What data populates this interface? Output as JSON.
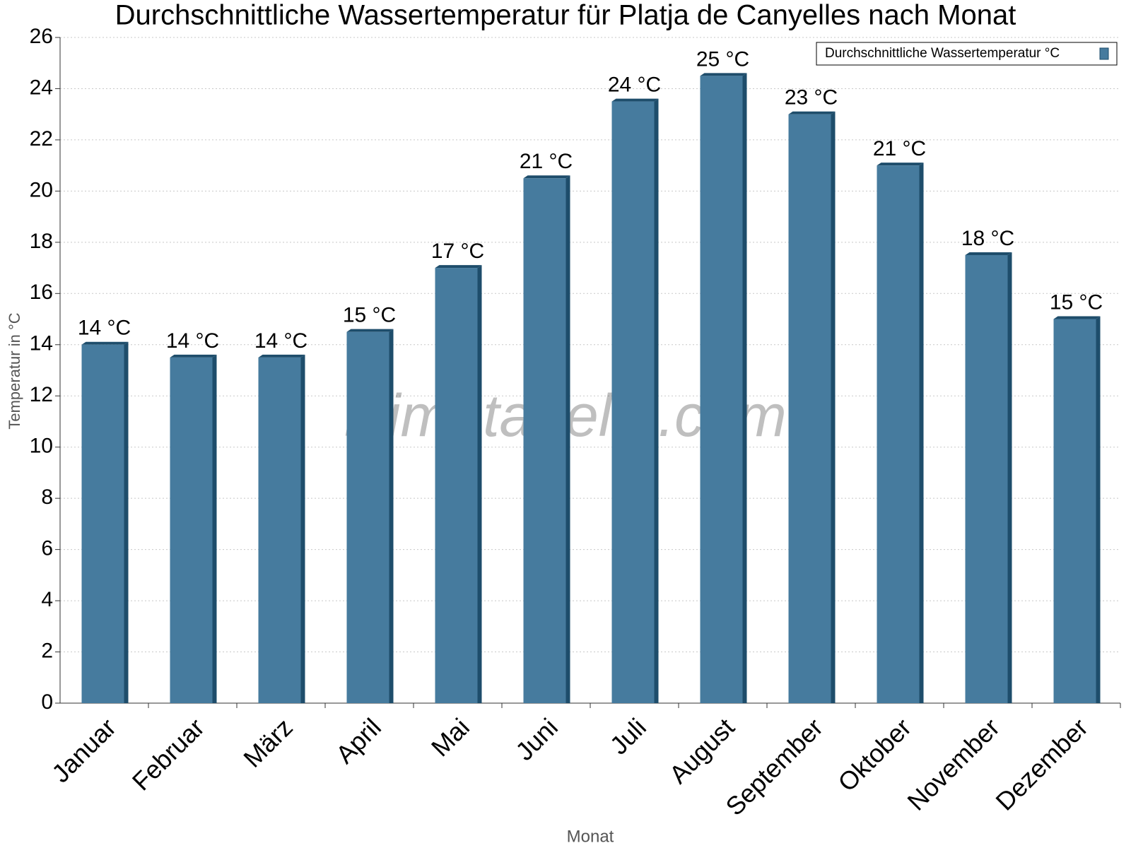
{
  "chart_data": {
    "type": "bar",
    "title": "Durchschnittliche Wassertemperatur für Platja de Canyelles nach Monat",
    "x_label": "Monat",
    "y_label": "Temperatur in °C",
    "watermark": "klimatabelle.com",
    "categories": [
      "Januar",
      "Februar",
      "März",
      "April",
      "Mai",
      "Juni",
      "Juli",
      "August",
      "September",
      "Oktober",
      "November",
      "Dezember"
    ],
    "series": [
      {
        "name": "Durchschnittliche Wassertemperatur °C",
        "color": "#467b9e",
        "values": [
          14,
          13.5,
          13.5,
          14.5,
          17,
          20.5,
          23.5,
          24.5,
          23,
          21,
          17.5,
          15
        ],
        "value_labels": [
          "14 °C",
          "14 °C",
          "14 °C",
          "15 °C",
          "17 °C",
          "21 °C",
          "24 °C",
          "25 °C",
          "23 °C",
          "21 °C",
          "18 °C",
          "15 °C"
        ]
      }
    ],
    "ylim": [
      0,
      26
    ],
    "yticks": [
      0,
      2,
      4,
      6,
      8,
      10,
      12,
      14,
      16,
      18,
      20,
      22,
      24,
      26
    ],
    "grid": true,
    "legend": "top-right"
  }
}
